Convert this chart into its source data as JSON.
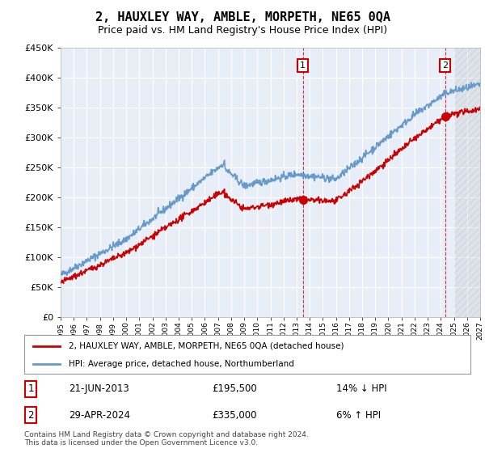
{
  "title": "2, HAUXLEY WAY, AMBLE, MORPETH, NE65 0QA",
  "subtitle": "Price paid vs. HM Land Registry's House Price Index (HPI)",
  "ylim": [
    0,
    450000
  ],
  "yticks": [
    0,
    50000,
    100000,
    150000,
    200000,
    250000,
    300000,
    350000,
    400000,
    450000
  ],
  "ytick_labels": [
    "£0",
    "£50K",
    "£100K",
    "£150K",
    "£200K",
    "£250K",
    "£300K",
    "£350K",
    "£400K",
    "£450K"
  ],
  "house_color": "#cc0000",
  "hpi_color": "#6699cc",
  "background_color": "#e8eef8",
  "grid_color": "#ffffff",
  "annotation1_date": "21-JUN-2013",
  "annotation1_price": "£195,500",
  "annotation1_hpi": "14% ↓ HPI",
  "annotation2_date": "29-APR-2024",
  "annotation2_price": "£335,000",
  "annotation2_hpi": "6% ↑ HPI",
  "legend_house": "2, HAUXLEY WAY, AMBLE, MORPETH, NE65 0QA (detached house)",
  "legend_hpi": "HPI: Average price, detached house, Northumberland",
  "footnote1": "Contains HM Land Registry data © Crown copyright and database right 2024.",
  "footnote2": "This data is licensed under the Open Government Licence v3.0.",
  "sale1_x": 2013.47,
  "sale1_y": 195500,
  "sale2_x": 2024.33,
  "sale2_y": 335000,
  "vline1_x": 2013.47,
  "vline2_x": 2024.33,
  "xmin": 1995,
  "xmax": 2027
}
